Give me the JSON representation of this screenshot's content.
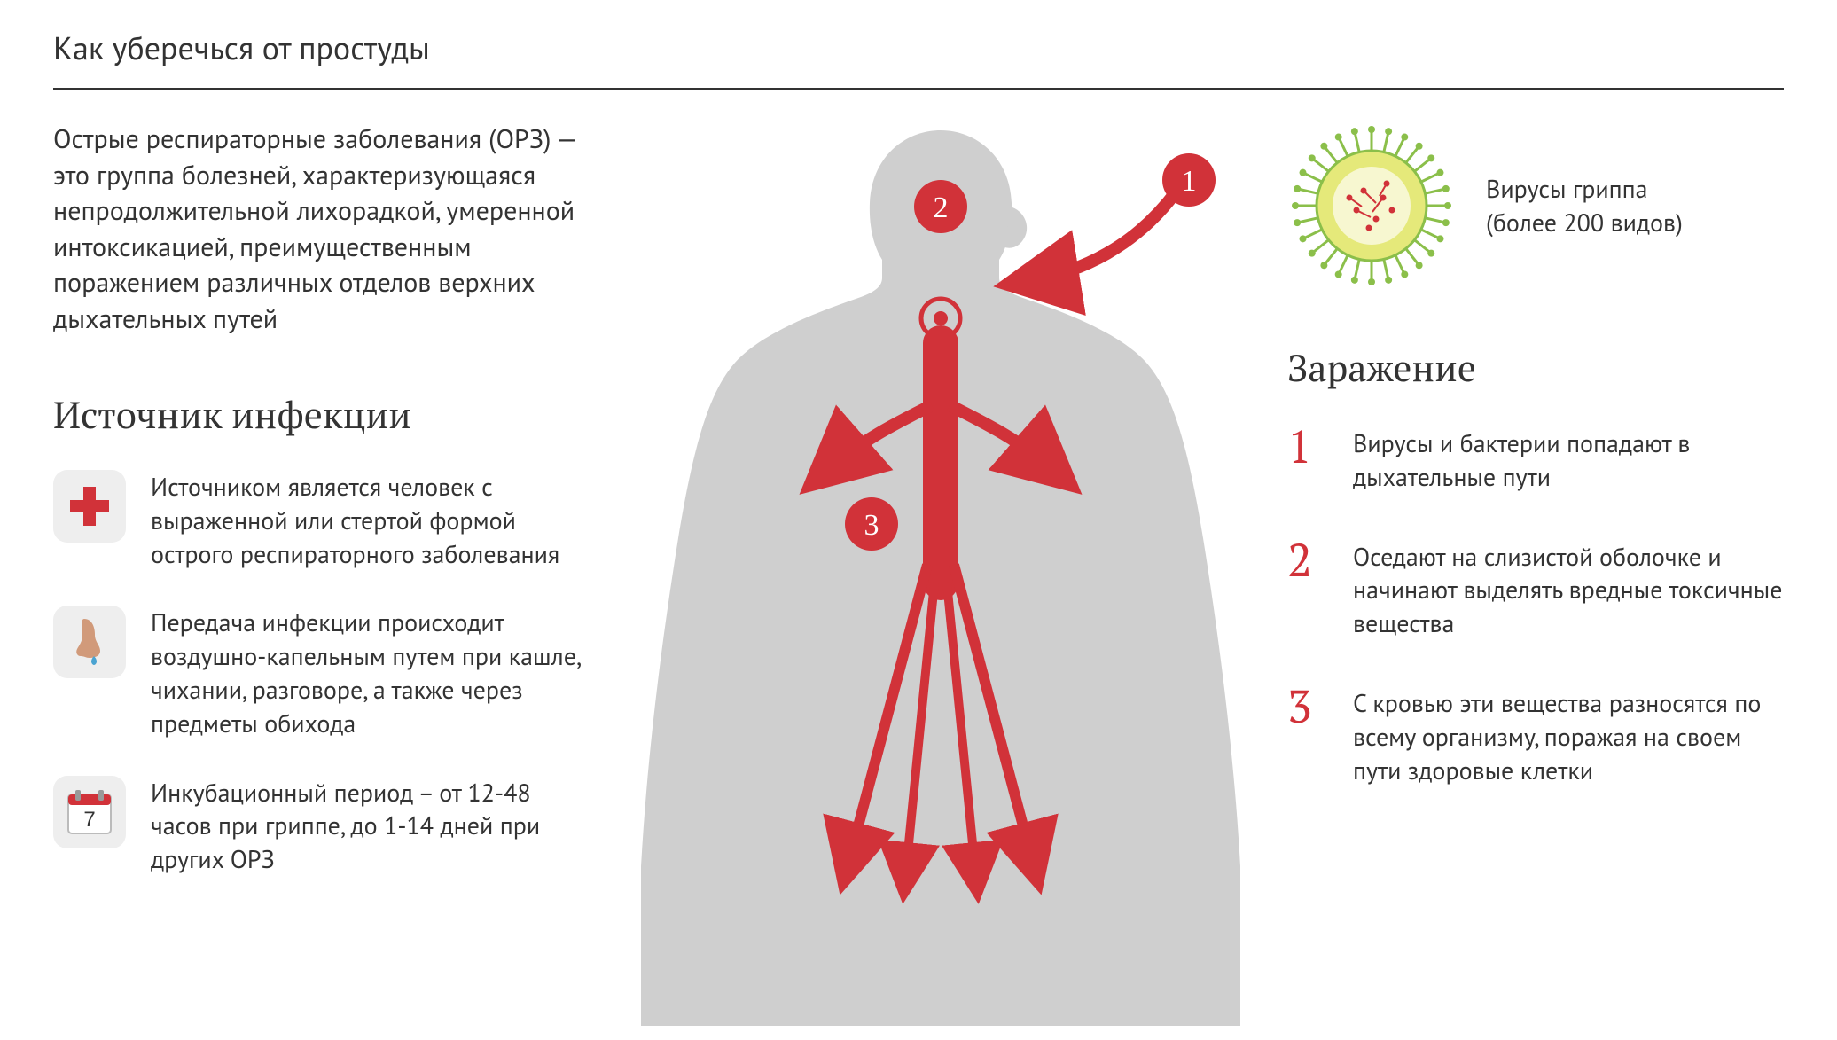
{
  "colors": {
    "text": "#333333",
    "accent": "#d13239",
    "icon_bg": "#eeeeee",
    "silhouette": "#cfcfcf",
    "virus_body": "#e5e97a",
    "virus_outline": "#8bbf4a",
    "virus_dot": "#d13239",
    "virus_inner": "#f7f7d0",
    "background": "#ffffff",
    "divider": "#333333"
  },
  "typography": {
    "title_fontsize": 36,
    "intro_fontsize": 30,
    "section_fontsize": 42,
    "item_fontsize": 28,
    "step_num_fontsize": 52,
    "serif_family": "PT Serif / Georgia",
    "sans_family": "PT Sans / Helvetica"
  },
  "title": "Как уберечься от простуды",
  "intro": "Острые респираторные заболевания (ОРЗ) — это группа болезней, характеризующаяся непродолжительной лихорадкой, умеренной интоксикацией, преимущественным поражением различных отделов верхних дыхательных путей",
  "source": {
    "heading": "Источник инфекции",
    "items": [
      {
        "icon": "medical-cross",
        "text": "Источником является человек с выраженной или стертой формой острого респираторного заболевания"
      },
      {
        "icon": "nose-drop",
        "text": "Передача инфекции происходит воздушно-капельным путем при кашле, чихании, разговоре, а также через предметы обихода"
      },
      {
        "icon": "calendar-7",
        "calendar_value": "7",
        "text": "Инкубационный период – от 12-48 часов при гриппе, до 1-14 дней при других ОРЗ"
      }
    ]
  },
  "virus": {
    "caption_line1": "Вирусы гриппа",
    "caption_line2": "(более 200 видов)"
  },
  "infection": {
    "heading": "Заражение",
    "steps": [
      {
        "num": "1",
        "text": "Вирусы и бактерии попадают в дыхательные пути"
      },
      {
        "num": "2",
        "text": "Оседают на слизистой оболочке и начинают выделять вредные токсичные вещества"
      },
      {
        "num": "3",
        "text": "С кровью эти вещества разносятся по всему организму, поражая на своем пути здоровые клетки"
      }
    ]
  },
  "body_diagram": {
    "type": "infographic",
    "silhouette_color": "#cfcfcf",
    "flow_color": "#d13239",
    "badges": [
      {
        "num": "1",
        "role": "entry-arrow-external"
      },
      {
        "num": "2",
        "role": "head-mucosa"
      },
      {
        "num": "3",
        "role": "chest-blood"
      }
    ],
    "badge_radius": 26,
    "badge_fontsize": 30,
    "arrow_stroke_width": 10
  }
}
